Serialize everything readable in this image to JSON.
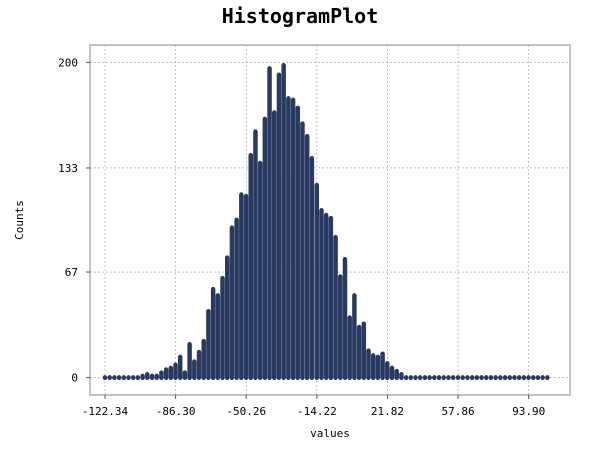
{
  "chart_data": {
    "type": "bar",
    "title": "HistogramPlot",
    "xlabel": "values",
    "ylabel": "Counts",
    "xlim": [
      -130.0,
      115.0
    ],
    "ylim": [
      -11,
      211
    ],
    "x_ticks": [
      -122.34,
      -86.3,
      -50.26,
      -14.22,
      21.82,
      57.86,
      93.9
    ],
    "x_tick_labels": [
      "-122.34",
      "-86.30",
      "-50.26",
      "-14.22",
      "21.82",
      "57.86",
      "93.90"
    ],
    "y_ticks": [
      0,
      67,
      133,
      200
    ],
    "y_tick_labels": [
      "0",
      "67",
      "133",
      "200"
    ],
    "grid": true,
    "bar_color": "#283a62",
    "bin_width": 2.4,
    "bins_x": [
      -122.3,
      -119.9,
      -117.5,
      -115.1,
      -112.7,
      -110.3,
      -107.9,
      -105.5,
      -103.1,
      -100.7,
      -98.3,
      -95.9,
      -93.5,
      -91.1,
      -88.7,
      -86.3,
      -83.9,
      -81.5,
      -79.1,
      -76.7,
      -74.3,
      -71.9,
      -69.5,
      -67.1,
      -64.7,
      -62.3,
      -59.9,
      -57.5,
      -55.1,
      -52.7,
      -50.3,
      -47.9,
      -45.5,
      -43.1,
      -40.7,
      -38.3,
      -35.9,
      -33.5,
      -31.1,
      -28.7,
      -26.3,
      -23.9,
      -21.5,
      -19.1,
      -16.7,
      -14.2,
      -11.8,
      -9.4,
      -7.0,
      -4.6,
      -2.2,
      0.2,
      2.6,
      5.0,
      7.4,
      9.8,
      12.2,
      14.6,
      17.0,
      19.4,
      21.8,
      24.2,
      26.6,
      29.0,
      31.4,
      33.8,
      36.2,
      38.6,
      41.0,
      43.4,
      45.8,
      48.2,
      50.6,
      53.0,
      55.4,
      57.9,
      60.3,
      62.7,
      65.1,
      67.5,
      69.9,
      72.3,
      74.7,
      77.1,
      79.5,
      81.9,
      84.3,
      86.7,
      89.1,
      91.5,
      93.9,
      96.3,
      98.7,
      101.1,
      103.5
    ],
    "values": [
      0,
      0,
      0,
      0,
      0,
      0,
      0,
      0,
      1,
      2,
      1,
      1,
      3,
      5,
      6,
      8,
      13,
      3,
      21,
      10,
      16,
      23,
      42,
      56,
      52,
      63,
      76,
      95,
      100,
      116,
      115,
      141,
      156,
      136,
      164,
      196,
      168,
      192,
      198,
      177,
      176,
      171,
      161,
      153,
      139,
      122,
      106,
      103,
      101,
      89,
      64,
      75,
      38,
      52,
      32,
      34,
      17,
      14,
      13,
      15,
      9,
      6,
      4,
      2,
      0,
      0,
      0,
      0,
      0,
      0,
      0,
      0,
      0,
      0,
      0,
      0,
      0,
      0,
      0,
      0,
      0,
      0,
      0,
      0,
      0,
      0,
      0,
      0,
      0,
      0,
      0,
      0,
      0,
      0,
      0
    ]
  }
}
